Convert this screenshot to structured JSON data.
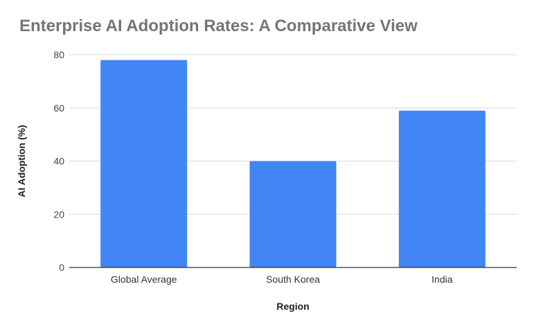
{
  "chart_data": {
    "type": "bar",
    "title": "Enterprise AI Adoption Rates: A Comparative View",
    "xlabel": "Region",
    "ylabel": "AI Adoption (%)",
    "categories": [
      "Global Average",
      "South Korea",
      "India"
    ],
    "values": [
      78,
      40,
      59
    ],
    "ylim": [
      0,
      80
    ],
    "yticks": [
      "0",
      "20",
      "40",
      "60",
      "80"
    ],
    "grid": true,
    "legend": "none",
    "bar_color": "#4285f4",
    "gridline_color": "#d9d9d9",
    "axis_color": "#333333",
    "title_color": "#757575"
  }
}
